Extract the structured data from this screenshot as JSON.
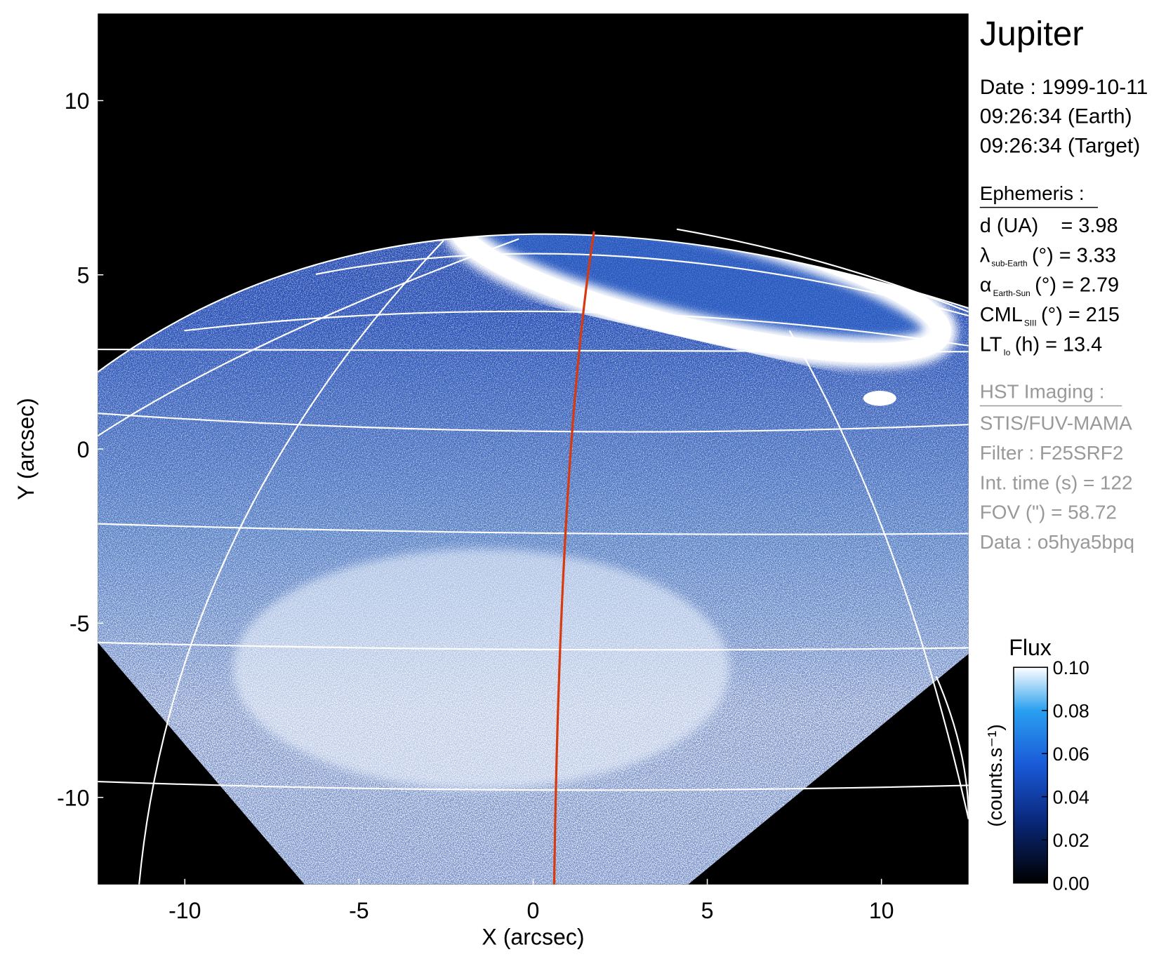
{
  "chart_data": {
    "type": "image",
    "title": "Jupiter",
    "xlabel": "X (arcsec)",
    "ylabel": "Y (arcsec)",
    "xlim": [
      -12.5,
      12.5
    ],
    "ylim": [
      -12.5,
      12.5
    ],
    "xticks": [
      -10,
      -5,
      0,
      5,
      10
    ],
    "yticks": [
      -10,
      -5,
      0,
      5,
      10
    ],
    "info": {
      "date": [
        "Date : 1999-10-11",
        "09:26:34 (Earth)",
        "09:26:34 (Target)"
      ],
      "ephemeris_title": "Ephemeris :",
      "ephemeris": [
        {
          "symbol": "d (UA)",
          "sub": null,
          "text": "= 3.98"
        },
        {
          "symbol": "λ",
          "sub": "sub-Earth",
          "text": "(°) = 3.33"
        },
        {
          "symbol": "α",
          "sub": "Earth-Sun",
          "text": "(°) = 2.79"
        },
        {
          "symbol": "CML",
          "sub": "SIII",
          "text": "(°) = 215"
        },
        {
          "symbol": "LT",
          "sub": "Io",
          "text": "(h) = 13.4"
        }
      ],
      "imaging_title": "HST Imaging :",
      "imaging": [
        "STIS/FUV-MAMA",
        "Filter : F25SRF2",
        "Int. time (s) = 122",
        "FOV (\") = 58.72",
        "Data : o5hya5bpq"
      ]
    },
    "colorbar": {
      "label": "Flux",
      "unit": "(counts.s⁻¹)",
      "lim": [
        0,
        0.1
      ],
      "ticks": [
        {
          "value": 0,
          "label": "0.00"
        },
        {
          "value": 0.02,
          "label": "0.02"
        },
        {
          "value": 0.04,
          "label": "0.04"
        },
        {
          "value": 0.06,
          "label": "0.06"
        },
        {
          "value": 0.08,
          "label": "0.08"
        },
        {
          "value": 0.1,
          "label": "0.10"
        }
      ]
    }
  }
}
